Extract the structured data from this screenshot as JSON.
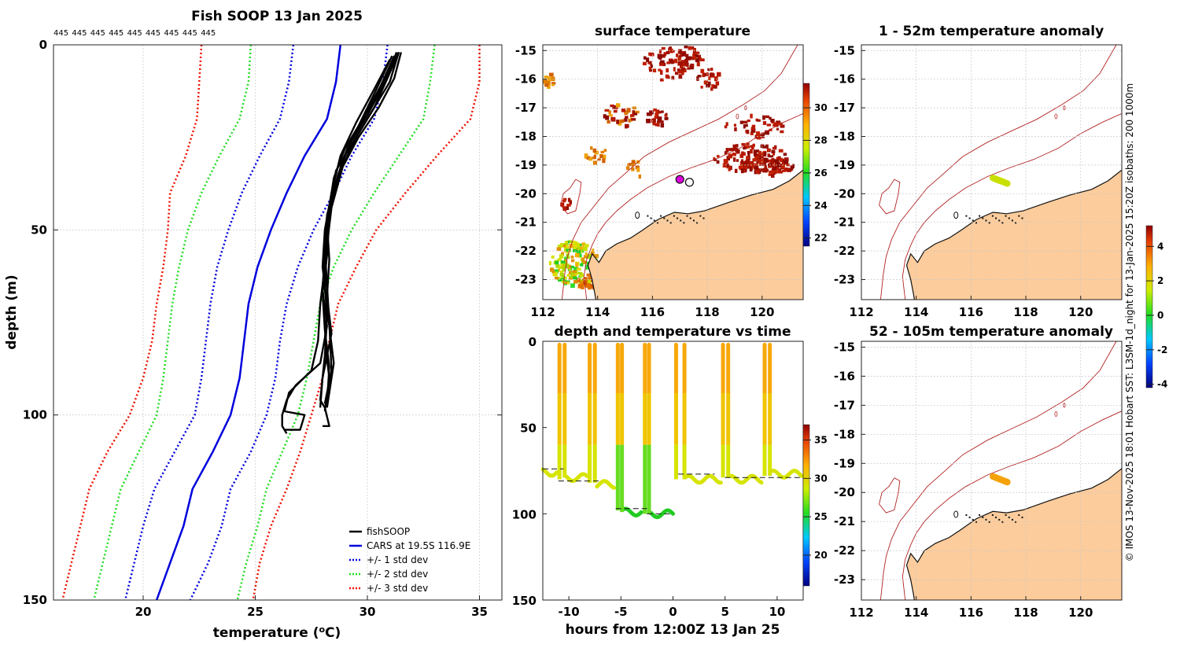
{
  "credit": "© IMOS 13-Nov-2025 18:01 Hobart SST: L3SM-1d_night for 13-Jan-2025 15:20Z isobaths: 200  1000m",
  "colors": {
    "fishsoop": "#000000",
    "cars": "#0000dd",
    "std1": "#0000dd",
    "std2": "#22dd22",
    "std3": "#ee1100",
    "land": "#fccc9c",
    "isobath": "#b22222"
  },
  "chart_data": [
    {
      "type": "line",
      "id": "profile",
      "title": "Fish SOOP 13 Jan 2025",
      "xlabel": "temperature (°C)",
      "ylabel": "depth (m)",
      "xlim": [
        16,
        36
      ],
      "ylim": [
        150,
        0
      ],
      "xticks": [
        20,
        25,
        30,
        35
      ],
      "yticks": [
        0,
        50,
        100,
        150
      ],
      "top_labels": [
        "445",
        "445",
        "445",
        "445",
        "445",
        "445",
        "445",
        "445",
        "445"
      ],
      "legend": [
        {
          "label": "fishSOOP",
          "style": "solid-black"
        },
        {
          "label": "CARS at 19.5S 116.9E",
          "style": "solid-blue"
        },
        {
          "label": "+/- 1 std dev",
          "style": "dotted-blue"
        },
        {
          "label": "+/- 2 std dev",
          "style": "dotted-green"
        },
        {
          "label": "+/- 3 std dev",
          "style": "dotted-red"
        }
      ],
      "depth": [
        0,
        10,
        20,
        30,
        40,
        50,
        60,
        70,
        80,
        90,
        100,
        110,
        120,
        130,
        140,
        150
      ],
      "series": [
        {
          "name": "CARS mean",
          "values": [
            28.8,
            28.6,
            28.2,
            27.2,
            26.4,
            25.7,
            25.1,
            24.7,
            24.5,
            24.3,
            23.9,
            23.1,
            22.2,
            21.8,
            21.2,
            20.6
          ]
        },
        {
          "name": "-1 std",
          "values": [
            26.7,
            26.5,
            26.1,
            25.2,
            24.4,
            23.8,
            23.3,
            23.0,
            22.8,
            22.6,
            22.3,
            21.4,
            20.5,
            20.0,
            19.6,
            19.2
          ]
        },
        {
          "name": "+1 std",
          "values": [
            30.9,
            30.7,
            30.3,
            29.3,
            28.5,
            27.6,
            26.9,
            26.4,
            26.1,
            25.9,
            25.5,
            24.8,
            23.9,
            23.5,
            22.9,
            22.1
          ]
        },
        {
          "name": "-2 std",
          "values": [
            24.8,
            24.7,
            24.3,
            23.4,
            22.6,
            22.0,
            21.6,
            21.3,
            21.1,
            20.9,
            20.6,
            19.8,
            19.0,
            18.6,
            18.2,
            17.8
          ]
        },
        {
          "name": "+2 std",
          "values": [
            33.0,
            32.8,
            32.5,
            31.4,
            30.3,
            29.3,
            28.5,
            27.9,
            27.6,
            27.3,
            26.9,
            26.2,
            25.5,
            25.1,
            24.6,
            24.2
          ]
        },
        {
          "name": "-3 std",
          "values": [
            22.6,
            22.5,
            22.4,
            21.9,
            21.2,
            21.1,
            20.9,
            20.6,
            20.4,
            20.0,
            19.4,
            18.4,
            17.6,
            17.2,
            16.8,
            16.4
          ]
        },
        {
          "name": "+3 std",
          "values": [
            35.0,
            35.0,
            34.6,
            33.1,
            31.7,
            30.4,
            29.5,
            28.7,
            28.3,
            28.0,
            27.5,
            27.0,
            26.4,
            25.7,
            25.2,
            24.9
          ]
        }
      ],
      "fishsoop_casts": [
        {
          "temp": [
            31.4,
            31.0,
            30.2,
            29.4,
            28.6,
            28.3,
            28.1,
            28.2,
            28.3,
            28.4,
            28.1
          ],
          "depth": [
            2,
            10,
            18,
            26,
            34,
            45,
            55,
            65,
            75,
            88,
            97
          ]
        },
        {
          "temp": [
            31.2,
            30.6,
            29.8,
            29.0,
            28.5,
            28.2,
            28.3,
            28.2,
            28.4,
            28.0,
            27.9
          ],
          "depth": [
            3,
            11,
            20,
            28,
            36,
            48,
            58,
            68,
            78,
            90,
            98
          ]
        },
        {
          "temp": [
            31.5,
            31.2,
            30.5,
            29.6,
            28.9,
            28.4,
            28.2,
            28.1,
            28.3,
            28.5,
            28.2
          ],
          "depth": [
            2,
            9,
            17,
            25,
            33,
            44,
            54,
            66,
            76,
            86,
            98
          ]
        },
        {
          "temp": [
            31.0,
            30.3,
            29.5,
            28.8,
            28.4,
            28.1,
            28.0,
            28.2,
            28.1,
            28.3,
            28.1
          ],
          "depth": [
            4,
            12,
            21,
            30,
            40,
            50,
            60,
            70,
            80,
            90,
            99
          ]
        },
        {
          "temp": [
            31.3,
            30.8,
            30.0,
            29.2,
            28.7,
            28.2,
            28.1,
            28.0,
            28.2,
            27.9,
            26.8,
            26.4,
            26.2,
            26.2,
            26.4
          ],
          "depth": [
            2,
            10,
            19,
            27,
            35,
            46,
            56,
            66,
            76,
            86,
            92,
            96,
            100,
            103,
            105
          ]
        },
        {
          "temp": [
            31.1,
            30.4,
            29.6,
            28.9,
            28.5,
            28.2,
            28.1,
            27.9,
            27.8,
            27.5,
            26.5,
            26.3,
            27.2,
            27.0,
            26.3
          ],
          "depth": [
            3,
            12,
            22,
            31,
            40,
            50,
            60,
            70,
            80,
            88,
            94,
            99,
            100,
            104,
            104
          ]
        },
        {
          "temp": [
            31.4,
            30.9,
            30.3,
            29.5,
            28.8,
            28.3,
            28.2,
            28.1,
            28.2,
            28.1,
            28.0,
            27.9,
            28.1,
            28.3,
            28.0
          ],
          "depth": [
            2,
            9,
            17,
            25,
            34,
            44,
            54,
            64,
            74,
            84,
            90,
            96,
            98,
            103,
            103
          ]
        },
        {
          "temp": [
            31.2,
            30.7,
            29.9,
            29.1,
            28.6,
            28.3,
            28.2,
            28.0,
            28.1,
            28.3,
            28.2
          ],
          "depth": [
            3,
            11,
            19,
            28,
            37,
            47,
            57,
            67,
            77,
            87,
            97
          ]
        }
      ]
    },
    {
      "type": "heatmap",
      "id": "sst-map",
      "title": "surface temperature",
      "xlim": [
        112,
        121.5
      ],
      "ylim": [
        -23.7,
        -14.8
      ],
      "xticks": [
        "112",
        "114",
        "116",
        "118",
        "120"
      ],
      "yticks": [
        "-15",
        "-16",
        "-17",
        "-18",
        "-19",
        "-20",
        "-21",
        "-22",
        "-23"
      ],
      "colorbar": {
        "min": 21.5,
        "max": 31.5,
        "ticks": [
          "22",
          "24",
          "26",
          "28",
          "30"
        ]
      },
      "shot_location": {
        "lon": 117.0,
        "lat": -19.5
      }
    },
    {
      "type": "scatter",
      "id": "depth-time",
      "title": "depth and temperature vs time",
      "xlabel": "hours from 12:00Z 13 Jan 25",
      "xlim": [
        -12.5,
        12.5
      ],
      "ylim": [
        150,
        0
      ],
      "xticks": [
        "-10",
        "-5",
        "0",
        "5",
        "10"
      ],
      "yticks": [
        "0",
        "50",
        "100",
        "150"
      ],
      "colorbar": {
        "min": 16,
        "max": 37,
        "ticks": [
          "20",
          "25",
          "30",
          "35"
        ]
      },
      "dives": [
        {
          "t": -10.9,
          "bottom": 80
        },
        {
          "t": -10.4,
          "bottom": 79
        },
        {
          "t": -8.0,
          "bottom": 82
        },
        {
          "t": -7.5,
          "bottom": 82
        },
        {
          "t": -5.3,
          "bottom": 98
        },
        {
          "t": -4.9,
          "bottom": 99
        },
        {
          "t": -2.7,
          "bottom": 100
        },
        {
          "t": -2.3,
          "bottom": 100
        },
        {
          "t": 0.3,
          "bottom": 80
        },
        {
          "t": 1.1,
          "bottom": 80
        },
        {
          "t": 4.8,
          "bottom": 79
        },
        {
          "t": 5.3,
          "bottom": 79
        },
        {
          "t": 8.8,
          "bottom": 78
        },
        {
          "t": 9.3,
          "bottom": 78
        }
      ],
      "bottom_depth_segments": [
        {
          "t0": -12.5,
          "t1": -10.5,
          "d": 74
        },
        {
          "t0": -11,
          "t1": -7,
          "d": 81
        },
        {
          "t0": -5.5,
          "t1": -2.5,
          "d": 97
        },
        {
          "t0": -2.5,
          "t1": 0,
          "d": 100
        },
        {
          "t0": 0.5,
          "t1": 4,
          "d": 77
        },
        {
          "t0": 5,
          "t1": 12.5,
          "d": 79
        }
      ]
    },
    {
      "type": "scatter",
      "id": "anom-upper",
      "title": "1 - 52m temperature anomaly",
      "xlim": [
        112,
        121.5
      ],
      "ylim": [
        -23.7,
        -14.8
      ],
      "xticks": [
        "112",
        "114",
        "116",
        "118",
        "120"
      ],
      "yticks": [
        "-15",
        "-16",
        "-17",
        "-18",
        "-19",
        "-20",
        "-21",
        "-22",
        "-23"
      ],
      "anomaly_color": "#c8e000"
    },
    {
      "type": "scatter",
      "id": "anom-lower",
      "title": "52 - 105m temperature anomaly",
      "xlim": [
        112,
        121.5
      ],
      "ylim": [
        -23.7,
        -14.8
      ],
      "xticks": [
        "112",
        "114",
        "116",
        "118",
        "120"
      ],
      "yticks": [
        "-15",
        "-16",
        "-17",
        "-18",
        "-19",
        "-20",
        "-21",
        "-22",
        "-23"
      ],
      "anomaly_color": "#f5a20a",
      "colorbar": {
        "min": -4.2,
        "max": 5.2,
        "ticks": [
          "-4",
          "-2",
          "0",
          "2",
          "4"
        ]
      }
    }
  ]
}
